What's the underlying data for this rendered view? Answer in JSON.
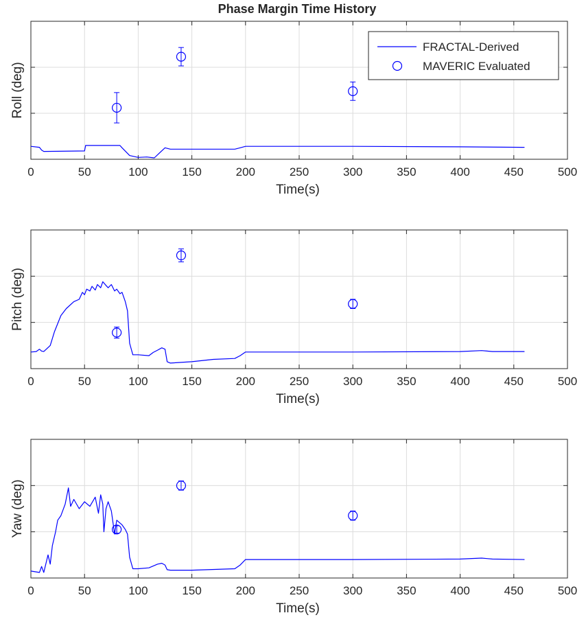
{
  "figure": {
    "title": "Phase Margin Time History"
  },
  "legend": {
    "line_label": "FRACTAL-Derived",
    "marker_label": "MAVERIC Evaluated"
  },
  "colors": {
    "series": "#0000ff",
    "grid": "#dcdcdc",
    "axis": "#262626"
  },
  "chart_data": [
    {
      "type": "line",
      "title": "Phase Margin Time History",
      "xlabel": "Time(s)",
      "ylabel": "Roll (deg)",
      "xlim": [
        0,
        500
      ],
      "xticks": [
        0,
        50,
        100,
        150,
        200,
        250,
        300,
        350,
        400,
        450,
        500
      ],
      "ylim": [
        0,
        3
      ],
      "ytick_labels_shown": false,
      "grid": true,
      "legend": "top-right",
      "series": [
        {
          "name": "FRACTAL-Derived",
          "type": "line",
          "x": [
            0,
            8,
            10,
            12,
            50,
            51,
            83,
            85,
            92,
            100,
            108,
            115,
            120,
            125,
            130,
            190,
            195,
            200,
            300,
            400,
            460
          ],
          "y": [
            0.28,
            0.26,
            0.2,
            0.17,
            0.18,
            0.3,
            0.3,
            0.25,
            0.08,
            0.04,
            0.05,
            0.03,
            0.14,
            0.25,
            0.22,
            0.22,
            0.25,
            0.28,
            0.28,
            0.27,
            0.26
          ]
        },
        {
          "name": "MAVERIC Evaluated",
          "type": "errorbar",
          "x": [
            80,
            140,
            300
          ],
          "y": [
            1.12,
            2.23,
            1.48
          ],
          "err": [
            0.33,
            0.2,
            0.2
          ]
        }
      ]
    },
    {
      "type": "line",
      "xlabel": "Time(s)",
      "ylabel": "Pitch (deg)",
      "xlim": [
        0,
        500
      ],
      "xticks": [
        0,
        50,
        100,
        150,
        200,
        250,
        300,
        350,
        400,
        450,
        500
      ],
      "ylim": [
        0,
        3
      ],
      "ytick_labels_shown": false,
      "grid": true,
      "series": [
        {
          "name": "FRACTAL-Derived",
          "type": "line",
          "x": [
            0,
            5,
            8,
            10,
            12,
            18,
            22,
            28,
            33,
            40,
            45,
            48,
            50,
            52,
            55,
            57,
            60,
            62,
            65,
            67,
            70,
            72,
            75,
            78,
            80,
            83,
            85,
            88,
            90,
            92,
            95,
            100,
            110,
            114,
            118,
            122,
            125,
            127,
            130,
            150,
            170,
            190,
            195,
            200,
            300,
            400,
            420,
            425,
            430,
            460
          ],
          "y": [
            0.36,
            0.37,
            0.42,
            0.38,
            0.37,
            0.5,
            0.8,
            1.15,
            1.3,
            1.45,
            1.5,
            1.65,
            1.6,
            1.72,
            1.68,
            1.78,
            1.7,
            1.82,
            1.75,
            1.88,
            1.8,
            1.75,
            1.82,
            1.68,
            1.72,
            1.62,
            1.65,
            1.45,
            1.25,
            0.55,
            0.3,
            0.3,
            0.28,
            0.35,
            0.4,
            0.45,
            0.42,
            0.15,
            0.12,
            0.15,
            0.2,
            0.22,
            0.28,
            0.36,
            0.36,
            0.37,
            0.39,
            0.38,
            0.37,
            0.37
          ]
        },
        {
          "name": "MAVERIC Evaluated",
          "type": "errorbar",
          "x": [
            80,
            140,
            300
          ],
          "y": [
            0.78,
            2.45,
            1.4
          ],
          "err": [
            0.12,
            0.14,
            0.1
          ]
        }
      ]
    },
    {
      "type": "line",
      "xlabel": "Time(s)",
      "ylabel": "Yaw (deg)",
      "xlim": [
        0,
        500
      ],
      "xticks": [
        0,
        50,
        100,
        150,
        200,
        250,
        300,
        350,
        400,
        450,
        500
      ],
      "ylim": [
        0,
        3
      ],
      "ytick_labels_shown": false,
      "grid": true,
      "series": [
        {
          "name": "FRACTAL-Derived",
          "type": "line",
          "x": [
            0,
            8,
            10,
            12,
            16,
            18,
            20,
            23,
            25,
            28,
            32,
            35,
            37,
            40,
            45,
            50,
            55,
            60,
            63,
            65,
            67,
            68,
            70,
            72,
            75,
            78,
            80,
            85,
            88,
            90,
            92,
            95,
            100,
            110,
            118,
            122,
            125,
            127,
            130,
            150,
            190,
            195,
            200,
            300,
            400,
            420,
            425,
            430,
            460
          ],
          "y": [
            0.15,
            0.12,
            0.25,
            0.12,
            0.5,
            0.3,
            0.7,
            1.0,
            1.25,
            1.35,
            1.6,
            1.95,
            1.55,
            1.7,
            1.5,
            1.65,
            1.55,
            1.75,
            1.4,
            1.8,
            1.6,
            1.0,
            1.5,
            1.65,
            1.45,
            0.95,
            1.25,
            1.15,
            1.05,
            0.95,
            0.45,
            0.2,
            0.2,
            0.22,
            0.3,
            0.32,
            0.28,
            0.18,
            0.17,
            0.17,
            0.2,
            0.28,
            0.4,
            0.4,
            0.41,
            0.43,
            0.42,
            0.41,
            0.4
          ]
        },
        {
          "name": "MAVERIC Evaluated",
          "type": "errorbar",
          "x": [
            80,
            140,
            300
          ],
          "y": [
            1.05,
            2.0,
            1.35
          ],
          "err": [
            0.08,
            0.1,
            0.1
          ]
        }
      ]
    }
  ]
}
